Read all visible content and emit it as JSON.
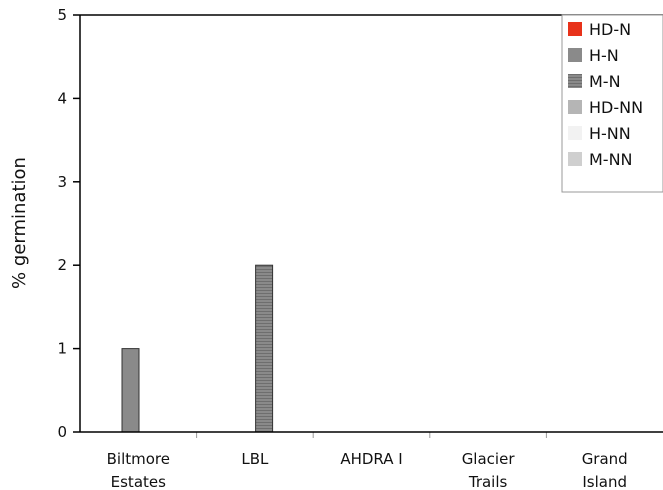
{
  "chart_data": {
    "type": "bar",
    "ylabel": "% germination",
    "xlabel": "",
    "ylim": [
      0,
      5
    ],
    "yticks": [
      0,
      1,
      2,
      3,
      4,
      5
    ],
    "categories": [
      [
        "Biltmore",
        "Estates"
      ],
      [
        "LBL"
      ],
      [
        "AHDRA I"
      ],
      [
        "Glacier",
        "Trails"
      ],
      [
        "Grand",
        "Island"
      ]
    ],
    "series": [
      {
        "name": "HD-N",
        "color": "#e8321a",
        "pattern": "solid",
        "values": [
          0,
          0,
          0,
          0,
          0
        ]
      },
      {
        "name": "H-N",
        "color": "#8a8a8a",
        "pattern": "solid",
        "values": [
          1,
          0,
          0,
          0,
          0
        ]
      },
      {
        "name": "M-N",
        "color": "#8a8a8a",
        "pattern": "hlines",
        "values": [
          0,
          2,
          0,
          0,
          0
        ]
      },
      {
        "name": "HD-NN",
        "color": "#b5b5b5",
        "pattern": "solid",
        "values": [
          0,
          0,
          0,
          0,
          0
        ]
      },
      {
        "name": "H-NN",
        "color": "#f2f2f2",
        "pattern": "solid",
        "values": [
          0,
          0,
          0,
          0,
          0
        ]
      },
      {
        "name": "M-NN",
        "color": "#cfcfcf",
        "pattern": "solid",
        "values": [
          0,
          0,
          0,
          0,
          0
        ]
      }
    ],
    "legend": "top-right",
    "grid": false
  }
}
